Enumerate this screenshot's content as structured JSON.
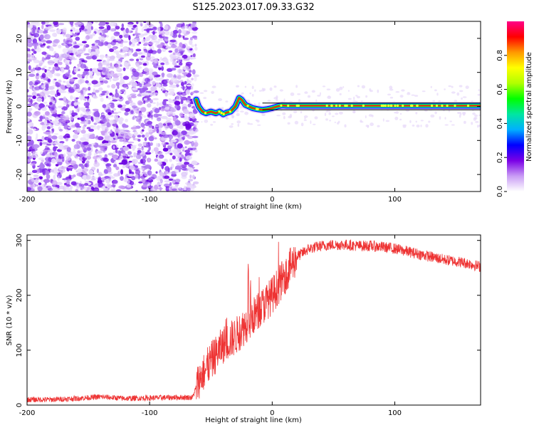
{
  "title": "S125.2023.017.09.33.G32",
  "chart_data": [
    {
      "type": "heatmap",
      "xlabel": "Height of straight line (km)",
      "ylabel": "Frequency (Hz)",
      "xlim": [
        -200,
        170
      ],
      "ylim": [
        -25,
        25
      ],
      "xticks": [
        -200,
        -100,
        0,
        100
      ],
      "yticks": [
        -20,
        -10,
        0,
        10,
        20
      ],
      "colorbar": {
        "label": "Normalized spectral amplitude",
        "range": [
          0,
          1
        ],
        "ticks": [
          0.0,
          0.2,
          0.4,
          0.6,
          0.8
        ],
        "colors": [
          "#ffffff",
          "#c99cf5",
          "#7a00e6",
          "#0000ff",
          "#00b0ff",
          "#00e6a0",
          "#00ff00",
          "#b0ff00",
          "#ffff00",
          "#ff9900",
          "#ff0000",
          "#ff0088"
        ]
      },
      "noise_region_x": [
        -200,
        -62
      ],
      "ridge": {
        "x": [
          -62,
          -60,
          -57,
          -54,
          -50,
          -46,
          -43,
          -40,
          -37,
          -34,
          -30,
          -27,
          -25,
          -22,
          -19,
          -16,
          -12,
          -8,
          -4,
          0,
          4,
          8,
          12,
          20,
          40,
          60,
          80,
          100,
          120,
          140,
          170
        ],
        "freq": [
          2,
          0,
          -1.5,
          -2,
          -1.5,
          -2,
          -1.5,
          -2.3,
          -1.8,
          -1.5,
          0,
          2.5,
          2,
          0.5,
          0,
          -0.5,
          -0.8,
          -1,
          -0.8,
          -0.5,
          0,
          0.3,
          0.2,
          0.2,
          0.2,
          0.2,
          0.2,
          0.2,
          0.2,
          0.2,
          0.2
        ]
      },
      "reference_band_hz": [
        -1,
        1
      ]
    },
    {
      "type": "line",
      "xlabel": "Height of straight line (km)",
      "ylabel": "SNR (10 * v/v)",
      "xlim": [
        -200,
        170
      ],
      "ylim": [
        0,
        310
      ],
      "xticks": [
        -200,
        -100,
        0,
        100
      ],
      "yticks": [
        0,
        100,
        200,
        300
      ],
      "color": "#ee3333",
      "series": [
        {
          "x": [
            -200,
            -180,
            -160,
            -140,
            -120,
            -100,
            -80,
            -65,
            -60,
            -50,
            -40,
            -30,
            -20,
            -10,
            0,
            10,
            20,
            30,
            40,
            50,
            60,
            70,
            80,
            90,
            100,
            110,
            120,
            130,
            140,
            150,
            160,
            170
          ],
          "values": [
            10,
            10,
            12,
            15,
            12,
            13,
            14,
            14,
            45,
            80,
            110,
            125,
            150,
            175,
            200,
            235,
            270,
            285,
            290,
            292,
            292,
            290,
            290,
            288,
            285,
            280,
            275,
            270,
            265,
            262,
            258,
            252
          ]
        }
      ]
    }
  ]
}
